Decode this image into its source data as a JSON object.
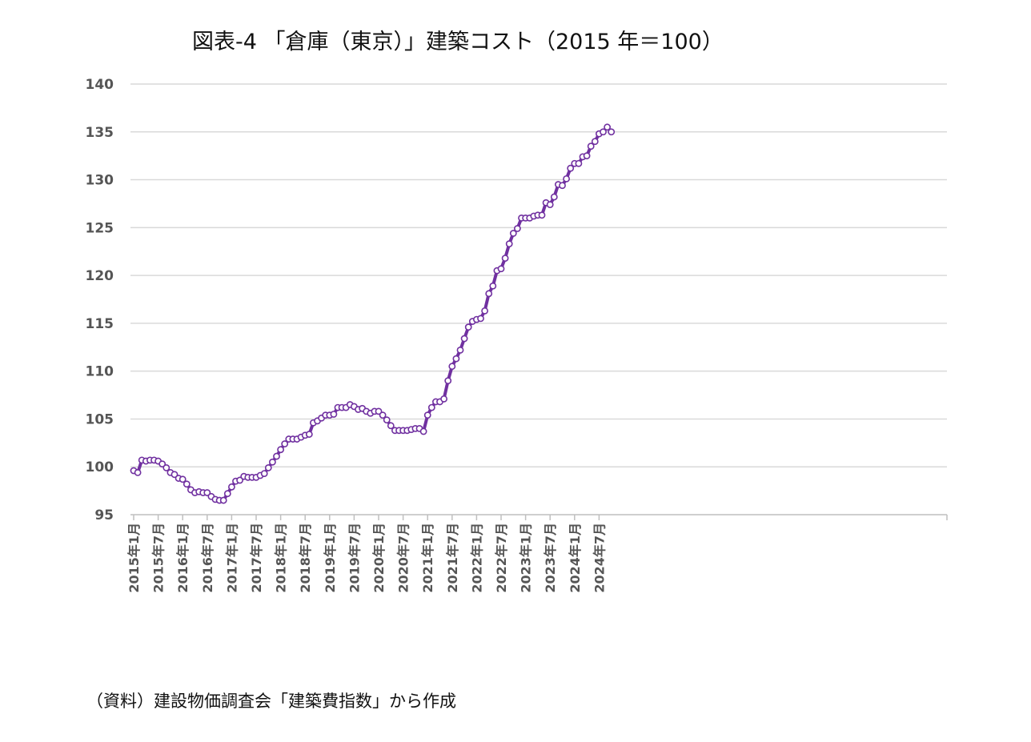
{
  "title": "図表-4 「倉庫（東京）」建築コスト（2015 年＝100）",
  "source": "（資料）建設物価調査会「建築費指数」から作成",
  "colors": {
    "line": "#7030A0",
    "marker_fill": "#ffffff",
    "grid": "#d9d9d9",
    "axis_text": "#555555"
  },
  "chart_data": {
    "type": "line",
    "title": "図表-4 「倉庫（東京）」建築コスト（2015 年＝100）",
    "xlabel": "",
    "ylabel": "",
    "ylim": [
      95,
      140
    ],
    "yticks": [
      95,
      100,
      105,
      110,
      115,
      120,
      125,
      130,
      135,
      140
    ],
    "grid": true,
    "legend": "none",
    "x_tick_labels": [
      "2015年1月",
      "2015年7月",
      "2016年1月",
      "2016年7月",
      "2017年1月",
      "2017年7月",
      "2018年1月",
      "2018年7月",
      "2019年1月",
      "2019年7月",
      "2020年1月",
      "2020年7月",
      "2021年1月",
      "2021年7月",
      "2022年1月",
      "2022年7月",
      "2023年1月",
      "2023年7月",
      "2024年1月",
      "2024年7月"
    ],
    "x_start": "2015-01",
    "series": [
      {
        "values": [
          99.6,
          99.4,
          100.7,
          100.6,
          100.7,
          100.7,
          100.6,
          100.3,
          99.9,
          99.4,
          99.2,
          98.8,
          98.7,
          98.2,
          97.6,
          97.3,
          97.4,
          97.3,
          97.3,
          96.9,
          96.6,
          96.5,
          96.5,
          97.2,
          97.9,
          98.5,
          98.6,
          99.0,
          98.9,
          98.9,
          98.9,
          99.1,
          99.3,
          99.9,
          100.5,
          101.1,
          101.8,
          102.4,
          102.9,
          102.9,
          102.9,
          103.1,
          103.3,
          103.4,
          104.6,
          104.8,
          105.1,
          105.4,
          105.4,
          105.5,
          106.2,
          106.2,
          106.2,
          106.5,
          106.3,
          106.0,
          106.1,
          105.8,
          105.6,
          105.8,
          105.8,
          105.4,
          104.9,
          104.3,
          103.8,
          103.8,
          103.8,
          103.8,
          103.9,
          104.0,
          104.0,
          103.7,
          105.4,
          106.2,
          106.8,
          106.8,
          107.1,
          109.0,
          110.5,
          111.3,
          112.2,
          113.4,
          114.6,
          115.2,
          115.4,
          115.5,
          116.3,
          118.1,
          118.9,
          120.5,
          120.7,
          121.8,
          123.3,
          124.4,
          124.9,
          126.0,
          126.0,
          126.0,
          126.2,
          126.3,
          126.3,
          127.6,
          127.4,
          128.2,
          129.5,
          129.4,
          130.1,
          131.2,
          131.7,
          131.7,
          132.4,
          132.5,
          133.5,
          134.0,
          134.8,
          135.0,
          135.5,
          135.0
        ]
      }
    ]
  }
}
